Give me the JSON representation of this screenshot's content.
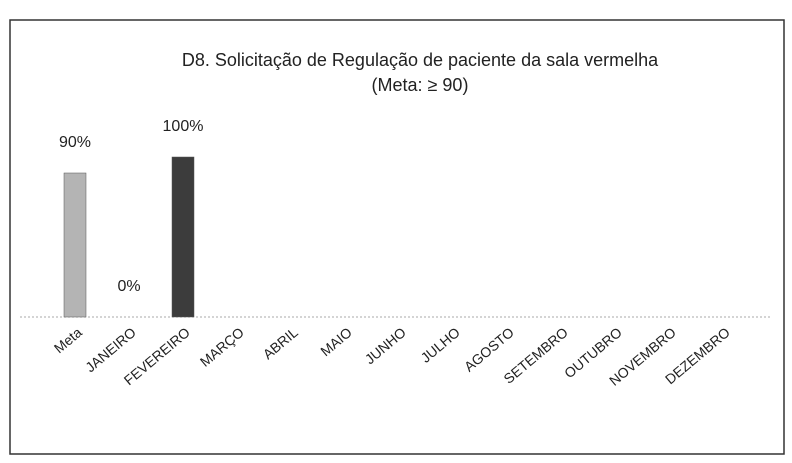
{
  "chart_data": {
    "type": "bar",
    "title": "D8. Solicitação de Regulação de paciente da sala vermelha",
    "subtitle": "(Meta: ≥ 90)",
    "categories": [
      "Meta",
      "JANEIRO",
      "FEVEREIRO",
      "MARÇO",
      "ABRIL",
      "MAIO",
      "JUNHO",
      "JULHO",
      "AGOSTO",
      "SETEMBRO",
      "OUTUBRO",
      "NOVEMBRO",
      "DEZEMBRO"
    ],
    "values": [
      90,
      0,
      100,
      null,
      null,
      null,
      null,
      null,
      null,
      null,
      null,
      null,
      null
    ],
    "value_labels": [
      "90%",
      "0%",
      "100%",
      null,
      null,
      null,
      null,
      null,
      null,
      null,
      null,
      null,
      null
    ],
    "colors": [
      "#b4b4b4",
      "#808080",
      "#3c3c3c",
      null,
      null,
      null,
      null,
      null,
      null,
      null,
      null,
      null,
      null
    ],
    "ylim": [
      0,
      100
    ]
  }
}
